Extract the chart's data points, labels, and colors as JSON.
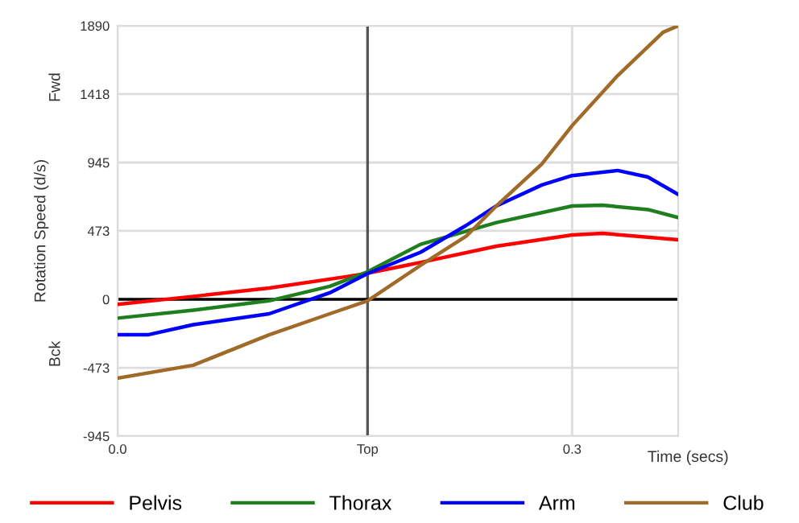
{
  "chart_data": {
    "type": "line",
    "xlabel": "Time (secs)",
    "ylabel": "Rotation Speed (d/s)",
    "annotations": [
      "Fwd",
      "Bck"
    ],
    "xlim": [
      0,
      0.37
    ],
    "xticks": [
      {
        "value": 0,
        "label": "0.0"
      },
      {
        "value": 0.165,
        "label": "Top"
      },
      0.3
    ],
    "ylim": [
      -945,
      1890
    ],
    "yticks": [
      -945,
      -473,
      0,
      473,
      945,
      1418,
      1890
    ],
    "grid": true,
    "legend": "bottom",
    "line_style": "solid",
    "marker": "none",
    "ref_lines": [
      {
        "axis": "x",
        "value": 0.165,
        "color": "#555555"
      },
      {
        "axis": "y",
        "value": 0,
        "color": "#000000"
      }
    ],
    "series": [
      {
        "name": "Pelvis",
        "color": "#ff0000",
        "x": [
          0,
          0.05,
          0.1,
          0.15,
          0.165,
          0.2,
          0.25,
          0.3,
          0.32,
          0.37
        ],
        "values": [
          -35,
          20,
          78,
          155,
          180,
          255,
          367,
          445,
          456,
          411
        ]
      },
      {
        "name": "Thorax",
        "color": "#1f7f1f",
        "x": [
          0,
          0.05,
          0.1,
          0.14,
          0.165,
          0.2,
          0.25,
          0.3,
          0.32,
          0.35,
          0.37
        ],
        "values": [
          -130,
          -75,
          -10,
          90,
          190,
          380,
          530,
          645,
          650,
          620,
          565
        ]
      },
      {
        "name": "Arm",
        "color": "#0000ff",
        "x": [
          0,
          0.02,
          0.05,
          0.1,
          0.14,
          0.165,
          0.2,
          0.23,
          0.25,
          0.28,
          0.3,
          0.33,
          0.35,
          0.37
        ],
        "values": [
          -245,
          -245,
          -175,
          -100,
          45,
          178,
          325,
          510,
          645,
          790,
          855,
          890,
          845,
          725
        ]
      },
      {
        "name": "Club",
        "color": "#a06a28",
        "x": [
          0,
          0.05,
          0.1,
          0.14,
          0.165,
          0.2,
          0.23,
          0.25,
          0.28,
          0.3,
          0.33,
          0.36,
          0.37
        ],
        "values": [
          -545,
          -455,
          -245,
          -100,
          -10,
          235,
          435,
          645,
          935,
          1200,
          1545,
          1845,
          1890
        ]
      }
    ]
  }
}
